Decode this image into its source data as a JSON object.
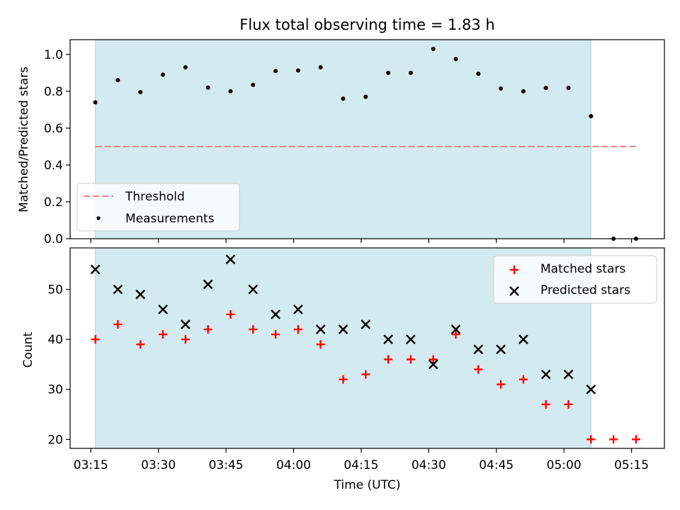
{
  "chart_data": {
    "title": "Flux total observing time = 1.83 h",
    "xlabel": "Time (UTC)",
    "x_ticks": [
      {
        "minutes": 0,
        "label": "03:15"
      },
      {
        "minutes": 15,
        "label": "03:30"
      },
      {
        "minutes": 30,
        "label": "03:45"
      },
      {
        "minutes": 45,
        "label": "04:00"
      },
      {
        "minutes": 60,
        "label": "04:15"
      },
      {
        "minutes": 75,
        "label": "04:30"
      },
      {
        "minutes": 90,
        "label": "04:45"
      },
      {
        "minutes": 105,
        "label": "05:00"
      },
      {
        "minutes": 120,
        "label": "05:15"
      }
    ],
    "x_range_minutes": [
      -4.6,
      127.3
    ],
    "time_minutes": [
      1,
      6,
      11,
      16,
      21,
      26,
      31,
      36,
      41,
      46,
      51,
      56,
      61,
      66,
      71,
      76,
      81,
      86,
      91,
      96,
      101,
      106,
      111,
      116,
      121
    ],
    "observing_window_minutes": [
      1,
      111
    ],
    "top": {
      "type": "scatter",
      "ylabel": "Matched/Predicted stars",
      "ylim": [
        0,
        1.08
      ],
      "y_ticks": [
        {
          "value": 0.0,
          "label": "0.0"
        },
        {
          "value": 0.2,
          "label": "0.2"
        },
        {
          "value": 0.4,
          "label": "0.4"
        },
        {
          "value": 0.6,
          "label": "0.6"
        },
        {
          "value": 0.8,
          "label": "0.8"
        },
        {
          "value": 1.0,
          "label": "1.0"
        }
      ],
      "threshold": {
        "name": "Threshold",
        "value": 0.5,
        "x_range_minutes": [
          1,
          121
        ],
        "color": "#f08080"
      },
      "measurements": {
        "name": "Measurements",
        "color": "#000000",
        "values": [
          0.74,
          0.86,
          0.795,
          0.89,
          0.93,
          0.82,
          0.8,
          0.835,
          0.91,
          0.913,
          0.93,
          0.76,
          0.77,
          0.9,
          0.9,
          1.03,
          0.975,
          0.895,
          0.815,
          0.8,
          0.818,
          0.818,
          0.665,
          0.0,
          0.0
        ]
      },
      "legend": {
        "position": "lower left",
        "entries": [
          "Threshold",
          "Measurements"
        ]
      }
    },
    "bottom": {
      "type": "scatter",
      "ylabel": "Count",
      "ylim": [
        18.2,
        58.3
      ],
      "y_ticks": [
        {
          "value": 20,
          "label": "20"
        },
        {
          "value": 30,
          "label": "30"
        },
        {
          "value": 40,
          "label": "40"
        },
        {
          "value": 50,
          "label": "50"
        }
      ],
      "series": [
        {
          "name": "Matched stars",
          "marker": "plus",
          "color": "#ff0000",
          "values": [
            40,
            43,
            39,
            41,
            40,
            42,
            45,
            42,
            41,
            42,
            39,
            32,
            33,
            36,
            36,
            36,
            41,
            34,
            31,
            32,
            27,
            27,
            20,
            20,
            20
          ]
        },
        {
          "name": "Predicted stars",
          "marker": "x",
          "color": "#000000",
          "values": [
            54,
            50,
            49,
            46,
            43,
            51,
            56,
            50,
            45,
            46,
            42,
            42,
            43,
            40,
            40,
            35,
            42,
            38,
            38,
            40,
            33,
            33,
            30,
            null,
            null
          ]
        }
      ],
      "legend": {
        "position": "upper right",
        "entries": [
          "Matched stars",
          "Predicted stars"
        ]
      }
    },
    "colors": {
      "window_fill": "#d3eaf0",
      "window_edge": "#a9d6e0",
      "axes": "#000000"
    }
  }
}
